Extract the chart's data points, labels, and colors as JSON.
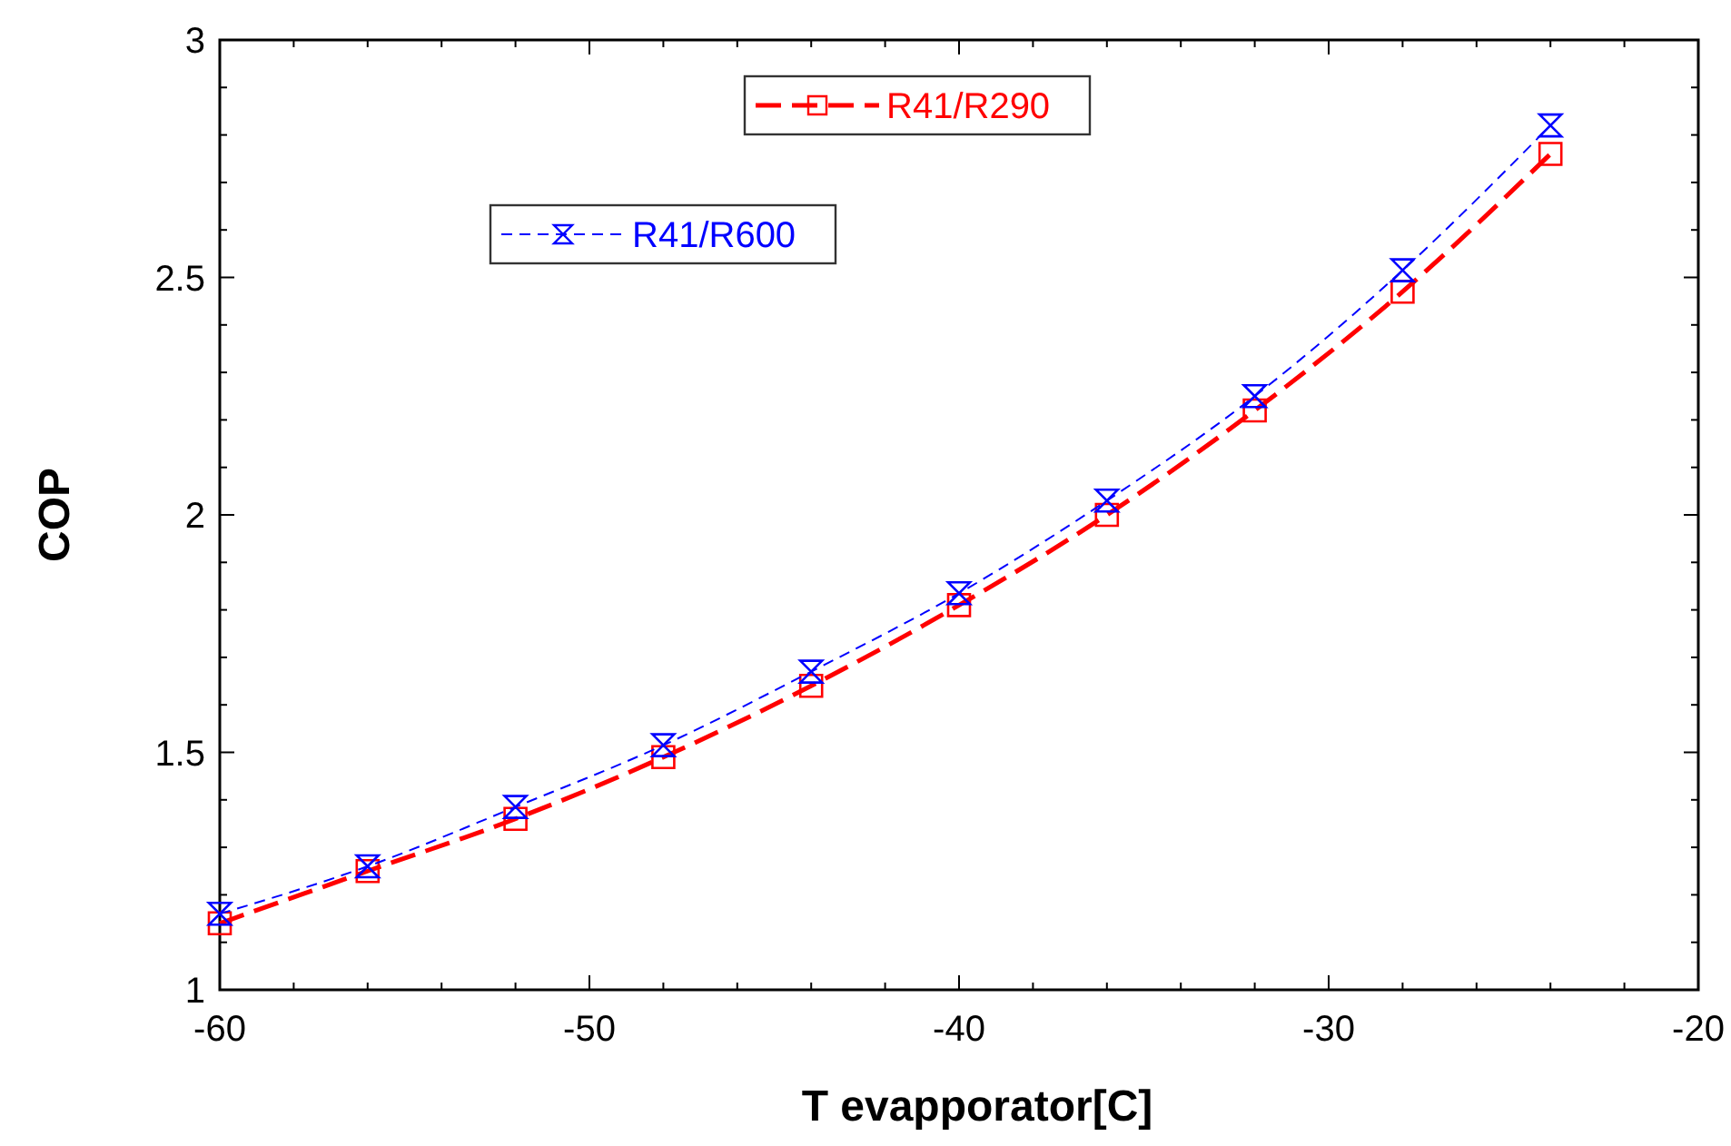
{
  "chart_data": {
    "type": "line",
    "xlabel": "T evapporator[C]",
    "ylabel": "COP",
    "xlim": [
      -60,
      -20
    ],
    "xticks": [
      -60,
      -50,
      -40,
      -30,
      -20
    ],
    "ylim": [
      1,
      3
    ],
    "yticks": [
      1,
      1.5,
      2,
      2.5,
      3
    ],
    "grid": false,
    "legend": "top",
    "x": [
      -60,
      -56,
      -52,
      -48,
      -44,
      -40,
      -36,
      -32,
      -28,
      -24
    ],
    "series": [
      {
        "name": "R41/R290",
        "color": "#ff0000",
        "marker": "square",
        "line_style": "dashed",
        "values": [
          1.14,
          1.25,
          1.36,
          1.49,
          1.64,
          1.81,
          2.0,
          2.22,
          2.47,
          2.76
        ]
      },
      {
        "name": "R41/R600",
        "color": "#0000ff",
        "marker": "diamond",
        "line_style": "dashed",
        "values": [
          1.16,
          1.26,
          1.385,
          1.515,
          1.67,
          1.835,
          2.03,
          2.25,
          2.515,
          2.82
        ]
      }
    ]
  }
}
